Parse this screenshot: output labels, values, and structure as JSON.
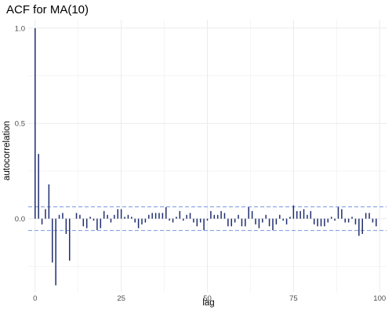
{
  "chart_data": {
    "type": "bar",
    "title": "ACF for MA(10)",
    "xlabel": "lag",
    "ylabel": "autocorrelation",
    "xlim": [
      -2,
      102
    ],
    "ylim": [
      -0.385,
      1.045
    ],
    "x_ticks": [
      0,
      25,
      50,
      75,
      100
    ],
    "y_ticks": [
      0.0,
      0.5,
      1.0
    ],
    "x_tick_labels": [
      "0",
      "25",
      "50",
      "75",
      "100"
    ],
    "y_tick_labels": [
      "0.0",
      "0.5",
      "1.0"
    ],
    "grid": true,
    "confidence_band": 0.062,
    "colors": {
      "bars": "#1f2d6e",
      "band": "#7b97e0",
      "grid": "#ebebeb"
    },
    "x": [
      0,
      1,
      2,
      3,
      4,
      5,
      6,
      7,
      8,
      9,
      10,
      11,
      12,
      13,
      14,
      15,
      16,
      17,
      18,
      19,
      20,
      21,
      22,
      23,
      24,
      25,
      26,
      27,
      28,
      29,
      30,
      31,
      32,
      33,
      34,
      35,
      36,
      37,
      38,
      39,
      40,
      41,
      42,
      43,
      44,
      45,
      46,
      47,
      48,
      49,
      50,
      51,
      52,
      53,
      54,
      55,
      56,
      57,
      58,
      59,
      60,
      61,
      62,
      63,
      64,
      65,
      66,
      67,
      68,
      69,
      70,
      71,
      72,
      73,
      74,
      75,
      76,
      77,
      78,
      79,
      80,
      81,
      82,
      83,
      84,
      85,
      86,
      87,
      88,
      89,
      90,
      91,
      92,
      93,
      94,
      95,
      96,
      97,
      98,
      99
    ],
    "values": [
      1.0,
      0.34,
      -0.03,
      0.05,
      0.18,
      -0.23,
      -0.35,
      0.02,
      0.03,
      -0.08,
      -0.22,
      0.0,
      0.03,
      0.02,
      -0.04,
      -0.05,
      0.01,
      -0.01,
      -0.06,
      -0.05,
      0.04,
      0.02,
      -0.02,
      0.02,
      0.05,
      0.05,
      0.01,
      0.02,
      0.01,
      -0.02,
      -0.05,
      -0.03,
      -0.02,
      0.02,
      0.03,
      0.03,
      0.03,
      0.03,
      0.06,
      -0.01,
      -0.02,
      0.01,
      0.04,
      -0.01,
      0.02,
      0.03,
      -0.02,
      -0.04,
      -0.02,
      -0.06,
      -0.01,
      0.04,
      0.02,
      0.02,
      0.04,
      0.03,
      -0.04,
      -0.04,
      -0.02,
      0.02,
      -0.04,
      -0.04,
      0.06,
      0.04,
      -0.03,
      -0.05,
      -0.02,
      0.02,
      -0.04,
      -0.06,
      -0.03,
      0.02,
      -0.01,
      -0.03,
      0.01,
      0.07,
      0.04,
      0.04,
      0.05,
      0.02,
      0.04,
      -0.03,
      -0.04,
      -0.04,
      -0.04,
      -0.02,
      0.01,
      -0.01,
      0.06,
      0.05,
      -0.02,
      -0.02,
      0.01,
      -0.03,
      -0.09,
      -0.08,
      0.03,
      0.03,
      -0.02,
      -0.04
    ]
  }
}
